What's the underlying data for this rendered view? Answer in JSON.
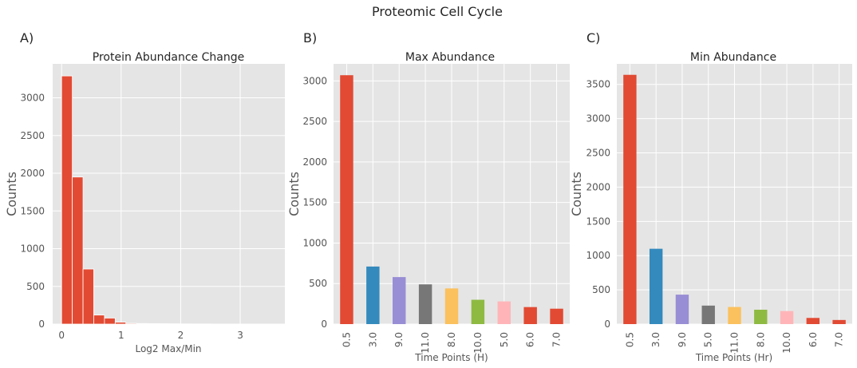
{
  "figure": {
    "title": "Proteomic Cell Cycle"
  },
  "chart_data": [
    {
      "type": "bar",
      "subtype": "histogram",
      "panel_label": "A)",
      "title": "Protein Abundance Change",
      "xlabel": "Log2 Max/Min",
      "ylabel": "Counts",
      "xlim": [
        -0.15,
        3.75
      ],
      "ylim": [
        0,
        3450
      ],
      "xticks": [
        0,
        1,
        2,
        3
      ],
      "yticks": [
        0,
        500,
        1000,
        1500,
        2000,
        2500,
        3000
      ],
      "bin_edges": [
        0.0,
        0.18,
        0.36,
        0.54,
        0.72,
        0.9,
        1.08,
        1.26,
        1.44,
        1.62,
        1.8,
        1.98,
        2.16,
        2.34,
        2.52,
        2.7,
        2.88,
        3.06,
        3.24,
        3.42,
        3.6
      ],
      "counts": [
        3290,
        1950,
        730,
        120,
        80,
        25,
        10,
        8,
        6,
        5,
        4,
        3,
        2,
        2,
        1,
        1,
        1,
        0,
        0,
        1
      ],
      "color": "#E24A33"
    },
    {
      "type": "bar",
      "panel_label": "B)",
      "title": "Max Abundance",
      "xlabel": "Time Points (H)",
      "ylabel": "Counts",
      "ylim": [
        0,
        3210
      ],
      "yticks": [
        0,
        500,
        1000,
        1500,
        2000,
        2500,
        3000
      ],
      "categories": [
        "0.5",
        "3.0",
        "9.0",
        "11.0",
        "8.0",
        "10.0",
        "5.0",
        "6.0",
        "7.0"
      ],
      "values": [
        3070,
        710,
        580,
        490,
        440,
        300,
        280,
        210,
        190
      ],
      "colors": [
        "#E24A33",
        "#348ABD",
        "#988ED5",
        "#777777",
        "#FBC15E",
        "#8EBA42",
        "#FFB5B8",
        "#E24A33",
        "#E24A33"
      ]
    },
    {
      "type": "bar",
      "panel_label": "C)",
      "title": "Min Abundance",
      "xlabel": "Time Points (Hr)",
      "ylabel": "Counts",
      "ylim": [
        0,
        3800
      ],
      "yticks": [
        0,
        500,
        1000,
        1500,
        2000,
        2500,
        3000,
        3500
      ],
      "categories": [
        "0.5",
        "3.0",
        "9.0",
        "5.0",
        "11.0",
        "8.0",
        "10.0",
        "6.0",
        "7.0"
      ],
      "values": [
        3640,
        1100,
        430,
        270,
        250,
        210,
        190,
        90,
        60
      ],
      "colors": [
        "#E24A33",
        "#348ABD",
        "#988ED5",
        "#777777",
        "#FBC15E",
        "#8EBA42",
        "#FFB5B8",
        "#E24A33",
        "#E24A33"
      ]
    }
  ]
}
